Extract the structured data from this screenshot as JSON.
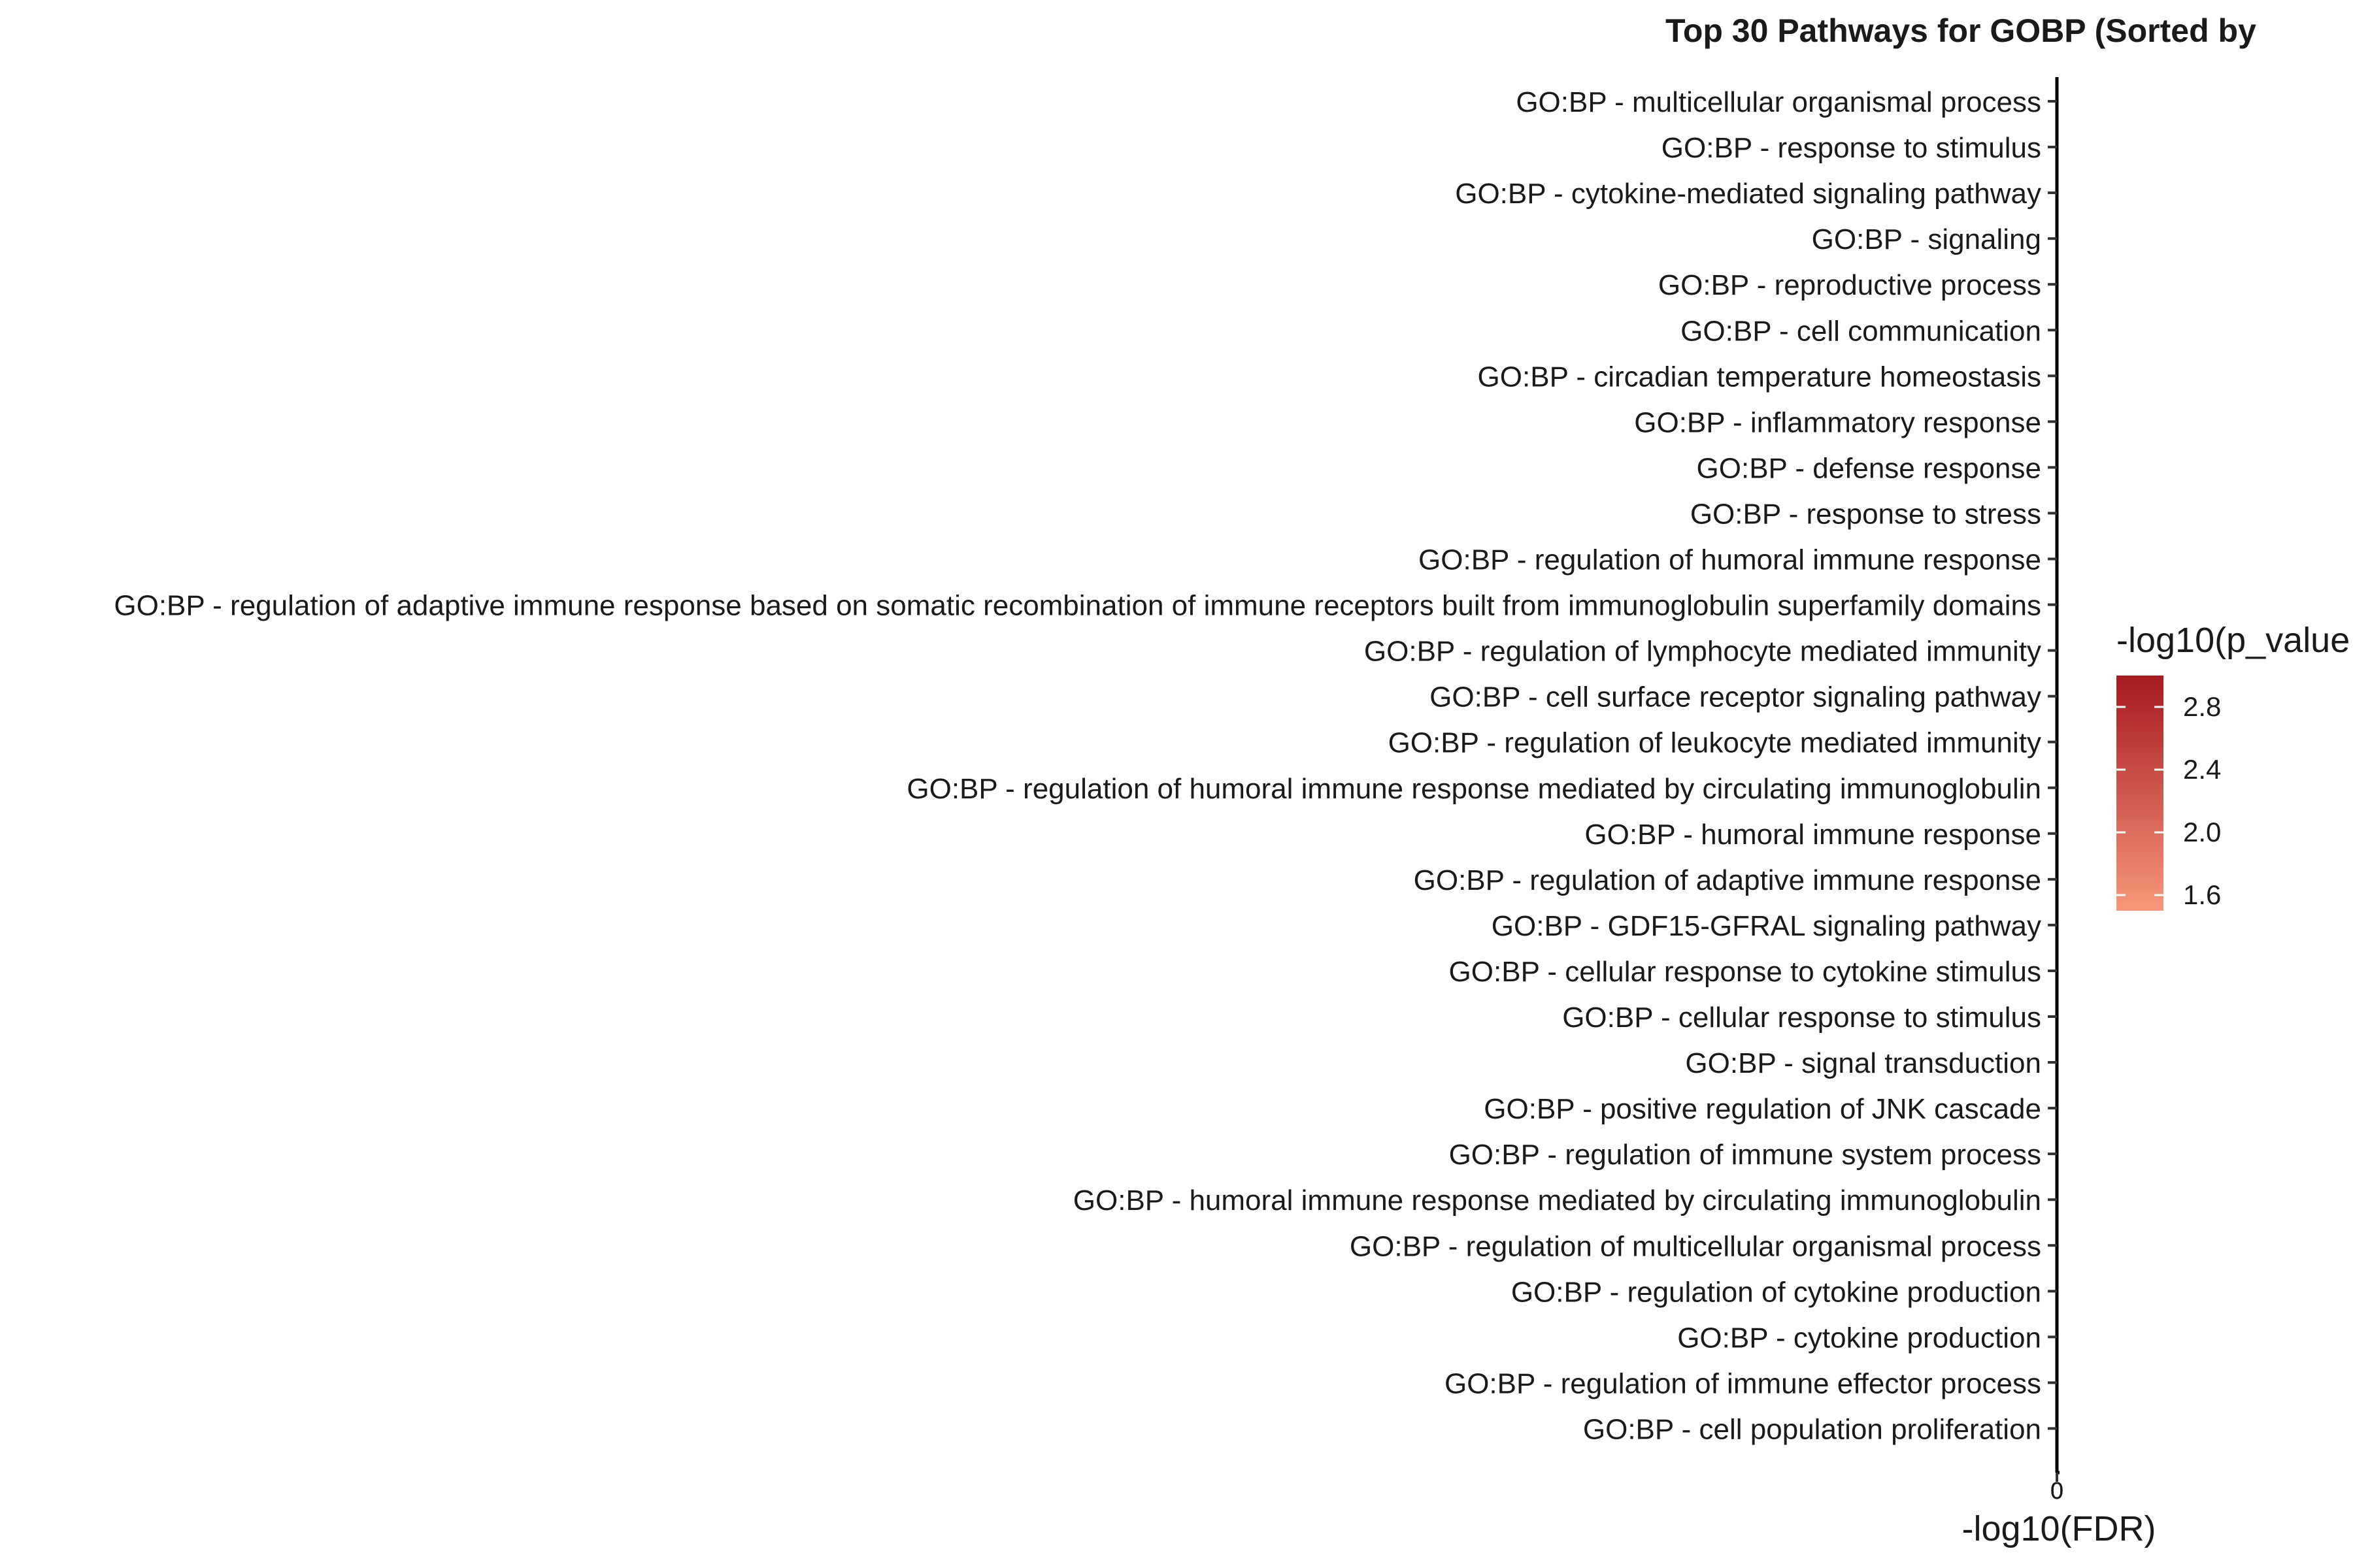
{
  "chart_data": {
    "type": "bar",
    "title": "Top 30 Pathways for GOBP (Sorted by",
    "xlabel": "-log10(FDR)",
    "ylabel": "",
    "categories": [
      "GO:BP - multicellular organismal process",
      "GO:BP - response to stimulus",
      "GO:BP - cytokine-mediated signaling pathway",
      "GO:BP - signaling",
      "GO:BP - reproductive process",
      "GO:BP - cell communication",
      "GO:BP - circadian temperature homeostasis",
      "GO:BP - inflammatory response",
      "GO:BP - defense response",
      "GO:BP - response to stress",
      "GO:BP - regulation of humoral immune response",
      "GO:BP - regulation of adaptive immune response based on somatic recombination of immune receptors built from immunoglobulin superfamily domains",
      "GO:BP - regulation of lymphocyte mediated immunity",
      "GO:BP - cell surface receptor signaling pathway",
      "GO:BP - regulation of leukocyte mediated immunity",
      "GO:BP - regulation of humoral immune response mediated by circulating immunoglobulin",
      "GO:BP - humoral immune response",
      "GO:BP - regulation of adaptive immune response",
      "GO:BP - GDF15-GFRAL signaling pathway",
      "GO:BP - cellular response to cytokine stimulus",
      "GO:BP - cellular response to stimulus",
      "GO:BP - signal transduction",
      "GO:BP - positive regulation of JNK cascade",
      "GO:BP - regulation of immune system process",
      "GO:BP - humoral immune response mediated by circulating immunoglobulin",
      "GO:BP - regulation of multicellular organismal process",
      "GO:BP - regulation of cytokine production",
      "GO:BP - cytokine production",
      "GO:BP - regulation of immune effector process",
      "GO:BP - cell population proliferation"
    ],
    "values": [
      0,
      0,
      0,
      0,
      0,
      0,
      0,
      0,
      0,
      0,
      0,
      0,
      0,
      0,
      0,
      0,
      0,
      0,
      0,
      0,
      0,
      0,
      0,
      0,
      0,
      0,
      0,
      0,
      0,
      0
    ],
    "x_ticks": [
      "0",
      "0",
      "0",
      "0",
      "0"
    ],
    "legend": {
      "title": "-log10(p_value",
      "position": "right",
      "ticks": [
        "2.8",
        "2.4",
        "2.0",
        "1.6"
      ],
      "range": [
        1.5,
        3.0
      ],
      "color_low": "#f7977a",
      "color_high": "#a6191f"
    },
    "grid": false
  }
}
